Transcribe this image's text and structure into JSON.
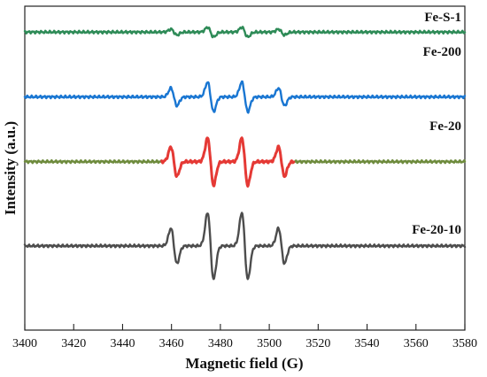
{
  "chart_data": {
    "type": "line",
    "xlabel": "Magnetic field (G)",
    "ylabel": "Intensity (a.u.)",
    "xlim": [
      3400,
      3580
    ],
    "xticks": [
      3400,
      3420,
      3440,
      3460,
      3480,
      3500,
      3520,
      3540,
      3560,
      3580
    ],
    "xtick_labels": [
      "3400",
      "3420",
      "3440",
      "3460",
      "3480",
      "3500",
      "3520",
      "3540",
      "3560",
      "3580"
    ],
    "yticks_visible": false,
    "grid": false,
    "legend": "none",
    "peak_positions_G": [
      3461,
      3476,
      3490,
      3505
    ],
    "series": [
      {
        "name": "Fe-S-1",
        "color": "#2E8B57",
        "baseline": 0.92,
        "amplitudes": [
          0.015,
          0.025,
          0.025,
          0.015
        ]
      },
      {
        "name": "Fe-200",
        "color": "#1976D2",
        "baseline": 0.72,
        "amplitudes": [
          0.045,
          0.075,
          0.075,
          0.045
        ]
      },
      {
        "name": "Fe-20",
        "color": "#E53935",
        "baseline_color": "#6E8B3D",
        "baseline": 0.52,
        "amplitudes": [
          0.075,
          0.12,
          0.12,
          0.075
        ]
      },
      {
        "name": "Fe-20-10",
        "color": "#4D4D4D",
        "baseline": 0.26,
        "amplitudes": [
          0.09,
          0.17,
          0.17,
          0.09
        ]
      }
    ]
  }
}
